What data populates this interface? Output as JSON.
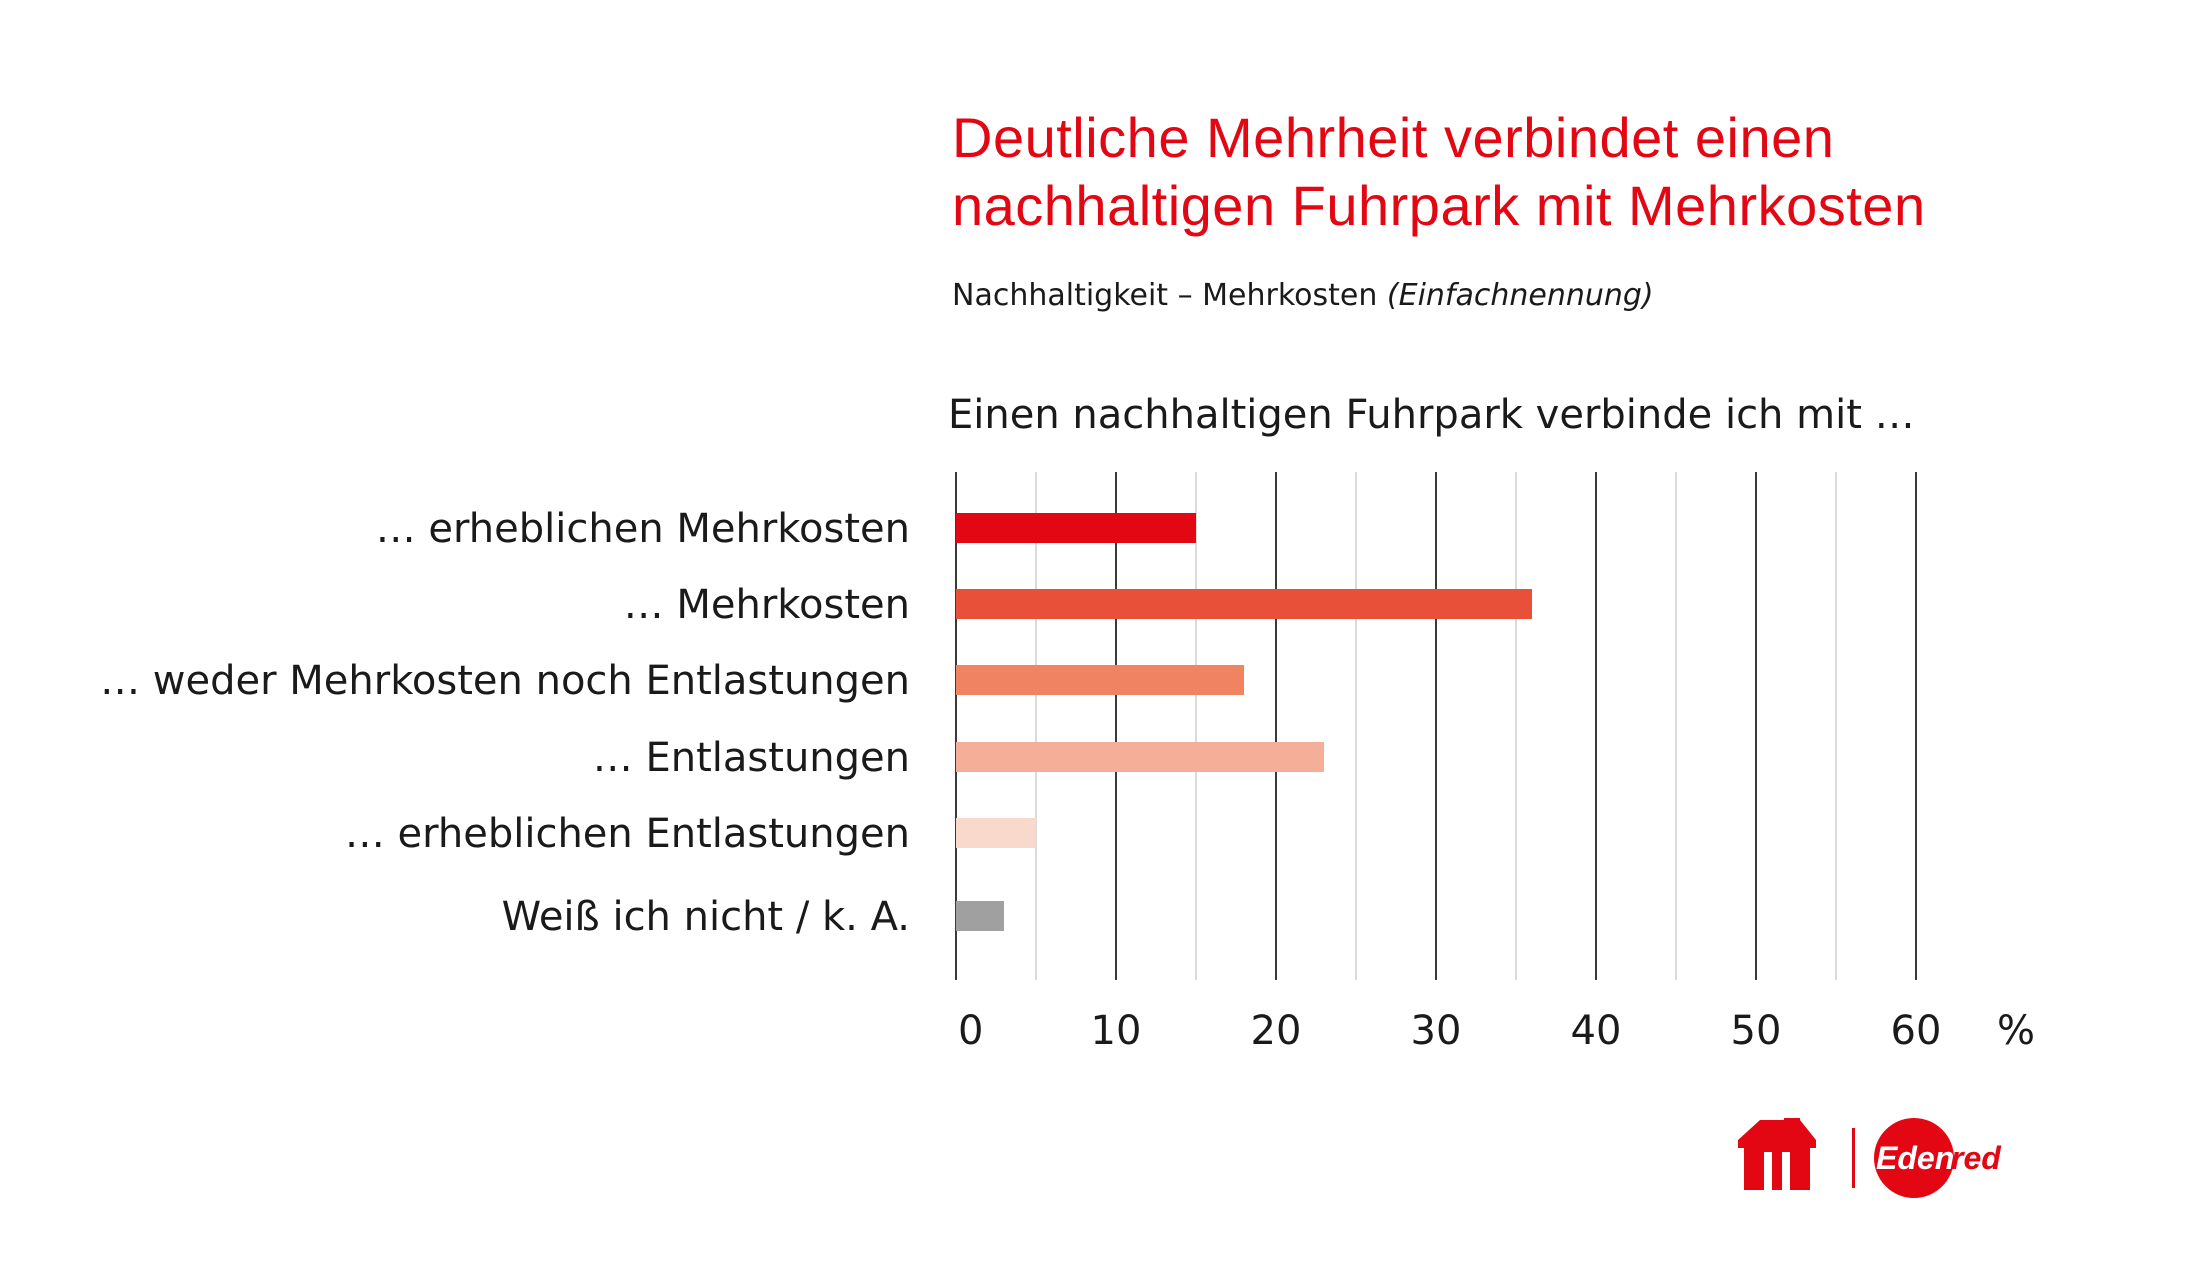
{
  "header": {
    "title_line1": "Deutliche Mehrheit verbindet einen",
    "title_line2": "nachhaltigen Fuhrpark mit Mehrkosten",
    "subtitle_main": "Nachhaltigkeit – Mehrkosten",
    "subtitle_note": "(Einfachnennung)",
    "question": "Einen nachhaltigen Fuhrpark verbinde ich mit …"
  },
  "colors": {
    "title": "#e30613",
    "bars": [
      "#e30613",
      "#e8503a",
      "#f08362",
      "#f5ae98",
      "#fad9cd",
      "#a0a0a0"
    ],
    "grid_major": "#3a3a3a",
    "grid_minor": "#cfcfcf"
  },
  "chart_data": {
    "type": "bar",
    "orientation": "horizontal",
    "categories": [
      "… erheblichen Mehrkosten",
      "… Mehrkosten",
      "… weder Mehrkosten noch Entlastungen",
      "… Entlastungen",
      "… erheblichen Entlastungen",
      "Weiß ich nicht / k. A."
    ],
    "values": [
      15,
      36,
      18,
      23,
      5,
      3
    ],
    "xlim": [
      0,
      60
    ],
    "xticks": [
      "0",
      "10",
      "20",
      "30",
      "40",
      "50",
      "60"
    ],
    "xunit": "%",
    "grid": true
  },
  "logos": {
    "left": "UTA",
    "right": "Edenred",
    "icon_left": "uta-logo-icon",
    "icon_right": "edenred-logo-icon"
  }
}
